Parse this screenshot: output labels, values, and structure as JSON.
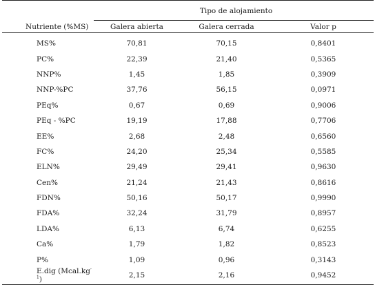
{
  "table": {
    "group_header": "Tipo de alojamiento",
    "columns": [
      "Nutriente (%MS)",
      "Galera abierta",
      "Galera cerrada",
      "Valor p"
    ],
    "rows": [
      {
        "nutrient": "MS%",
        "abierta": "70,81",
        "cerrada": "70,15",
        "p": "0,8401"
      },
      {
        "nutrient": "PC%",
        "abierta": "22,39",
        "cerrada": "21,40",
        "p": "0,5365"
      },
      {
        "nutrient": "NNP%",
        "abierta": "1,45",
        "cerrada": "1,85",
        "p": "0,3909"
      },
      {
        "nutrient": "NNP-%PC",
        "abierta": "37,76",
        "cerrada": "56,15",
        "p": "0,0971"
      },
      {
        "nutrient": "PEq%",
        "abierta": "0,67",
        "cerrada": "0,69",
        "p": "0,9006"
      },
      {
        "nutrient": "PEq - %PC",
        "abierta": "19,19",
        "cerrada": "17,88",
        "p": "0,7706"
      },
      {
        "nutrient": "EE%",
        "abierta": "2,68",
        "cerrada": "2,48",
        "p": "0,6560"
      },
      {
        "nutrient": "FC%",
        "abierta": "24,20",
        "cerrada": "25,34",
        "p": "0,5585"
      },
      {
        "nutrient": "ELN%",
        "abierta": "29,49",
        "cerrada": "29,41",
        "p": "0,9630"
      },
      {
        "nutrient": "Cen%",
        "abierta": "21,24",
        "cerrada": "21,43",
        "p": "0,8616"
      },
      {
        "nutrient": "FDN%",
        "abierta": "50,16",
        "cerrada": "50,17",
        "p": "0,9990"
      },
      {
        "nutrient": "FDA%",
        "abierta": "32,24",
        "cerrada": "31,79",
        "p": "0,8957"
      },
      {
        "nutrient": "LDA%",
        "abierta": "6,13",
        "cerrada": "6,74",
        "p": "0,6255"
      },
      {
        "nutrient": "Ca%",
        "abierta": "1,79",
        "cerrada": "1,82",
        "p": "0,8523"
      },
      {
        "nutrient": "P%",
        "abierta": "1,09",
        "cerrada": "0,96",
        "p": "0,3143"
      },
      {
        "nutrient": "E.dig (Mcal.kg",
        "nutrient_sup": "-1",
        "nutrient_suffix": ")",
        "abierta": "2,15",
        "cerrada": "2,16",
        "p": "0,9452"
      }
    ]
  }
}
